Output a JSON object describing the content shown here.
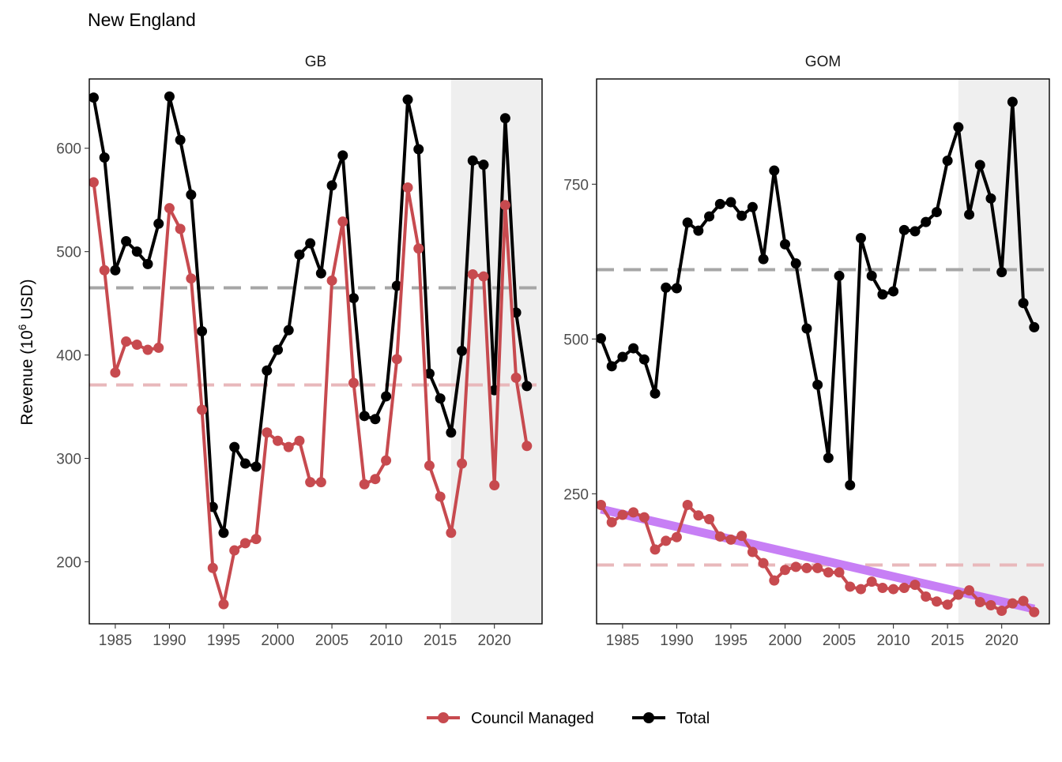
{
  "chart_data": {
    "type": "line",
    "title": "New England",
    "ylabel": {
      "prefix": "Revenue (10",
      "superscript": "6",
      "suffix": " USD)"
    },
    "legend": {
      "position": "bottom",
      "items": [
        {
          "label": "Council Managed",
          "color": "#c74a4f"
        },
        {
          "label": "Total",
          "color": "#000000"
        }
      ]
    },
    "colors": {
      "council": "#c74a4f",
      "total": "#000000",
      "council_mean": "#e8b8bb",
      "total_mean": "#a6a6a6",
      "trend": "#c77ff5",
      "shade": "#efefef"
    },
    "shaded_x_start": 2016,
    "panels": [
      {
        "name": "GB",
        "xlim": [
          1982.6,
          2024.4
        ],
        "ylim": [
          140,
          667
        ],
        "x_ticks": [
          1985,
          1990,
          1995,
          2000,
          2005,
          2010,
          2015,
          2020
        ],
        "y_ticks": [
          200,
          300,
          400,
          500,
          600
        ],
        "total_mean": 465,
        "council_mean": 371,
        "trend": null,
        "series": [
          {
            "name": "Total",
            "x": [
              1983,
              1984,
              1985,
              1986,
              1987,
              1988,
              1989,
              1990,
              1991,
              1992,
              1993,
              1994,
              1995,
              1996,
              1997,
              1998,
              1999,
              2000,
              2001,
              2002,
              2003,
              2004,
              2005,
              2006,
              2007,
              2008,
              2009,
              2010,
              2011,
              2012,
              2013,
              2014,
              2015,
              2016,
              2017,
              2018,
              2019,
              2020,
              2021,
              2022,
              2023
            ],
            "values": [
              649,
              591,
              482,
              510,
              500,
              488,
              527,
              650,
              608,
              555,
              423,
              253,
              228,
              311,
              295,
              292,
              385,
              405,
              424,
              497,
              508,
              479,
              564,
              593,
              455,
              341,
              338,
              360,
              467,
              647,
              599,
              382,
              358,
              325,
              404,
              588,
              584,
              366,
              629,
              441,
              370
            ]
          },
          {
            "name": "Council Managed",
            "x": [
              1983,
              1984,
              1985,
              1986,
              1987,
              1988,
              1989,
              1990,
              1991,
              1992,
              1993,
              1994,
              1995,
              1996,
              1997,
              1998,
              1999,
              2000,
              2001,
              2002,
              2003,
              2004,
              2005,
              2006,
              2007,
              2008,
              2009,
              2010,
              2011,
              2012,
              2013,
              2014,
              2015,
              2016,
              2017,
              2018,
              2019,
              2020,
              2021,
              2022,
              2023
            ],
            "values": [
              567,
              482,
              383,
              413,
              410,
              405,
              407,
              542,
              522,
              474,
              347,
              194,
              159,
              211,
              218,
              222,
              325,
              317,
              311,
              317,
              277,
              277,
              472,
              529,
              373,
              275,
              280,
              298,
              396,
              562,
              503,
              293,
              263,
              228,
              295,
              478,
              476,
              274,
              545,
              378,
              312
            ]
          }
        ]
      },
      {
        "name": "GOM",
        "xlim": [
          1982.6,
          2024.4
        ],
        "ylim": [
          40,
          920
        ],
        "x_ticks": [
          1985,
          1990,
          1995,
          2000,
          2005,
          2010,
          2015,
          2020
        ],
        "y_ticks": [
          250,
          500,
          750
        ],
        "total_mean": 612,
        "council_mean": 135,
        "trend": {
          "x": [
            1983,
            2023
          ],
          "y": [
            225,
            64
          ]
        },
        "series": [
          {
            "name": "Total",
            "x": [
              1983,
              1984,
              1985,
              1986,
              1987,
              1988,
              1989,
              1990,
              1991,
              1992,
              1993,
              1994,
              1995,
              1996,
              1997,
              1998,
              1999,
              2000,
              2001,
              2002,
              2003,
              2004,
              2005,
              2006,
              2007,
              2008,
              2009,
              2010,
              2011,
              2012,
              2013,
              2014,
              2015,
              2016,
              2017,
              2018,
              2019,
              2020,
              2021,
              2022,
              2023
            ],
            "values": [
              501,
              456,
              471,
              485,
              467,
              412,
              583,
              582,
              688,
              675,
              698,
              718,
              721,
              699,
              713,
              629,
              772,
              653,
              622,
              517,
              426,
              308,
              602,
              264,
              663,
              602,
              572,
              577,
              676,
              674,
              689,
              705,
              788,
              842,
              701,
              781,
              727,
              608,
              883,
              558,
              519
            ]
          },
          {
            "name": "Council Managed",
            "x": [
              1983,
              1984,
              1985,
              1986,
              1987,
              1988,
              1989,
              1990,
              1991,
              1992,
              1993,
              1994,
              1995,
              1996,
              1997,
              1998,
              1999,
              2000,
              2001,
              2002,
              2003,
              2004,
              2005,
              2006,
              2007,
              2008,
              2009,
              2010,
              2011,
              2012,
              2013,
              2014,
              2015,
              2016,
              2017,
              2018,
              2019,
              2020,
              2021,
              2022,
              2023
            ],
            "values": [
              232,
              204,
              216,
              220,
              212,
              160,
              174,
              180,
              232,
              215,
              209,
              181,
              176,
              182,
              156,
              138,
              110,
              127,
              132,
              130,
              130,
              123,
              123,
              100,
              96,
              108,
              98,
              96,
              98,
              103,
              84,
              76,
              71,
              87,
              94,
              75,
              70,
              61,
              73,
              77,
              59
            ]
          }
        ]
      }
    ]
  }
}
